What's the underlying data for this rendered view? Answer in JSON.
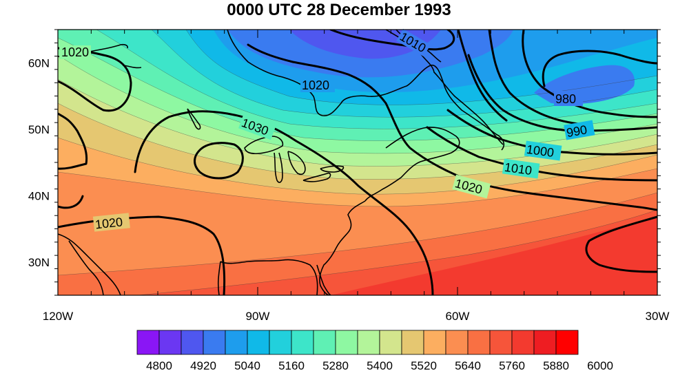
{
  "title": "0000 UTC 28 December 1993",
  "axes": {
    "lon_ticks": [
      {
        "value": -120,
        "label": "120W"
      },
      {
        "value": -90,
        "label": "90W"
      },
      {
        "value": -60,
        "label": "60W"
      },
      {
        "value": -30,
        "label": "30W"
      }
    ],
    "lat_ticks": [
      {
        "value": 30,
        "label": "30N"
      },
      {
        "value": 40,
        "label": "40N"
      },
      {
        "value": 50,
        "label": "50N"
      },
      {
        "value": 60,
        "label": "60N"
      }
    ],
    "lon_range": [
      -120,
      -30
    ],
    "lat_range": [
      25,
      65
    ]
  },
  "colorbar": {
    "labels": [
      "4800",
      "4920",
      "5040",
      "5160",
      "5280",
      "5400",
      "5520",
      "5640",
      "5760",
      "5880",
      "6000"
    ],
    "colors": [
      "#8a16f5",
      "#6b37f2",
      "#4f57ef",
      "#3a7bf0",
      "#1e9ded",
      "#10b9e8",
      "#22d0dc",
      "#3de5c9",
      "#5ff0b4",
      "#8ef8a2",
      "#b3f49a",
      "#d3e58d",
      "#e5c771",
      "#fcae60",
      "#fb8e51",
      "#f97043",
      "#f6553a",
      "#f33a2f",
      "#ee1d22",
      "#ff0000"
    ]
  },
  "pressure_labels": [
    {
      "text": "1020"
    },
    {
      "text": "1010"
    },
    {
      "text": "1020"
    },
    {
      "text": "1030"
    },
    {
      "text": "980"
    },
    {
      "text": "990"
    },
    {
      "text": "1000"
    },
    {
      "text": "1010"
    },
    {
      "text": "1020"
    },
    {
      "text": "1020"
    }
  ]
}
